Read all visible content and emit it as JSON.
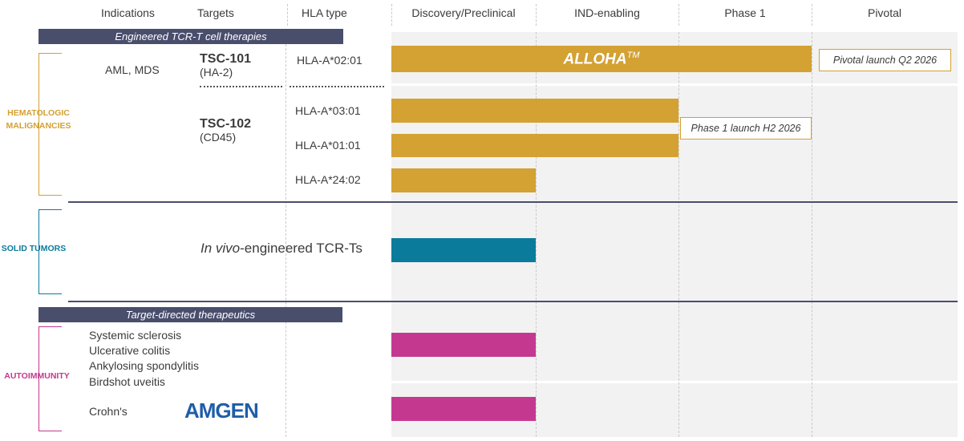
{
  "columns": {
    "indications": "Indications",
    "targets": "Targets",
    "hla_type": "HLA type",
    "stages": [
      "Discovery/Preclinical",
      "IND-enabling",
      "Phase 1",
      "Pivotal"
    ]
  },
  "sections": {
    "tcr": "Engineered TCR-T cell therapies",
    "target": "Target-directed therapeutics"
  },
  "categories": {
    "heme": "HEMATOLOGIC MALIGNANCIES",
    "solid": "SOLID TUMORS",
    "auto": "AUTOIMMUNITY"
  },
  "heme": {
    "indication": "AML, MDS",
    "tsc101": {
      "name": "TSC-101",
      "target": "(HA-2)",
      "hla": "HLA-A*02:01",
      "bar_label": "ALLOHA",
      "bar_label_mark": "TM",
      "stage_progress": 3.0,
      "note": "Pivotal launch Q2 2026"
    },
    "tsc102": {
      "name": "TSC-102",
      "target": "(CD45)",
      "rows": [
        {
          "hla": "HLA-A*03:01",
          "stage_progress": 2.0
        },
        {
          "hla": "HLA-A*01:01",
          "stage_progress": 2.0
        },
        {
          "hla": "HLA-A*24:02",
          "stage_progress": 1.0
        }
      ],
      "note": "Phase 1 launch H2 2026"
    }
  },
  "solid": {
    "program": {
      "italic": "In vivo",
      "rest": "-engineered TCR-Ts"
    },
    "stage_progress": 1.0
  },
  "auto": {
    "indications_group1": [
      "Systemic sclerosis",
      "Ulcerative colitis",
      "Ankylosing spondylitis",
      "Birdshot uveitis"
    ],
    "group1_stage_progress": 1.0,
    "indication_group2": "Crohn's",
    "partner_logo": "AMGEN",
    "group2_stage_progress": 1.0
  },
  "colors": {
    "gold": "#d4a133",
    "teal": "#0b7b9c",
    "magenta": "#c4398f",
    "navy": "#4a4e6d"
  }
}
